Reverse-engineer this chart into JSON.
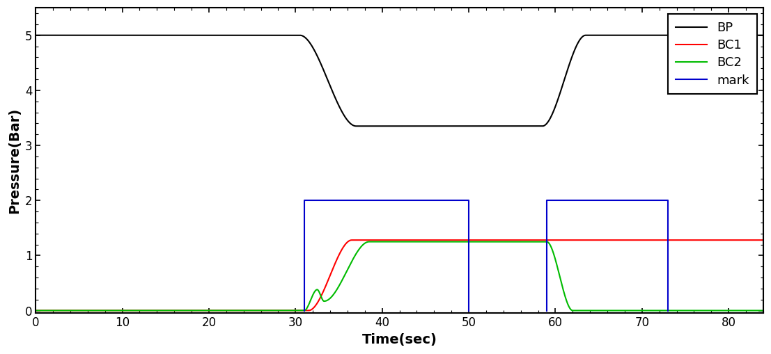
{
  "title": "",
  "xlabel": "Time(sec)",
  "ylabel": "Pressure(Bar)",
  "xlim": [
    0,
    84
  ],
  "ylim": [
    -0.05,
    5.5
  ],
  "yticks": [
    0,
    1,
    2,
    3,
    4,
    5
  ],
  "xticks": [
    0,
    10,
    20,
    30,
    40,
    50,
    60,
    70,
    80
  ],
  "bp_color": "#000000",
  "bc1_color": "#ff0000",
  "bc2_color": "#00bb00",
  "mark_color": "#0000cc",
  "legend_labels": [
    "BP",
    "BC1",
    "BC2",
    "mark"
  ],
  "figsize": [
    11.07,
    5.09
  ],
  "dpi": 100,
  "mark1_x_start": 31,
  "mark1_x_end": 50,
  "mark2_x_start": 59,
  "mark2_x_end": 73,
  "mark_y_top": 2,
  "bp_flat1_end": 30.5,
  "bp_flat1_val": 5.0,
  "bp_drop_start": 30.5,
  "bp_drop_end": 37.0,
  "bp_bottom_val": 3.35,
  "bp_bottom_end": 58.5,
  "bp_rise_start": 58.5,
  "bp_rise_end": 63.5,
  "bp_flat2_val": 5.0,
  "bc1_rise_start": 31.5,
  "bc1_rise_end": 36.5,
  "bc1_flat_val": 1.28,
  "bc2_spike_start": 31.0,
  "bc2_spike_peak_t": 32.5,
  "bc2_spike_peak_val": 0.38,
  "bc2_dip_t": 33.3,
  "bc2_dip_val": 0.17,
  "bc2_rise_start": 33.3,
  "bc2_rise_end": 38.5,
  "bc2_flat_val": 1.25,
  "bc2_drop_start": 59.0,
  "bc2_drop_end": 62.0
}
